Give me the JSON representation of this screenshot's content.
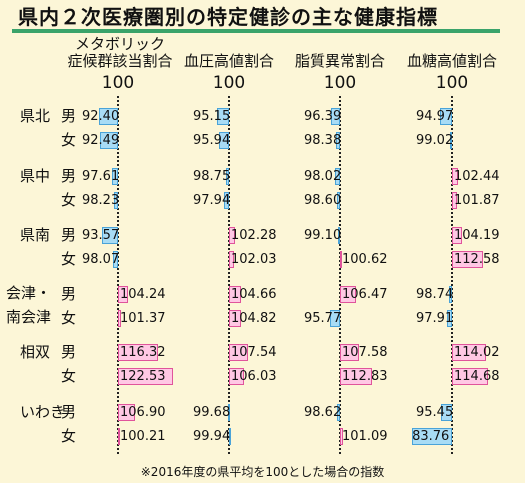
{
  "title": "県内２次医療圏別の特定健診の主な健康指標",
  "footnote": "※2016年度の県平均を100とした場合の指数",
  "colors": {
    "below": "#a8dcf5",
    "above": "#ffc8e4",
    "accent": "#3aa36a"
  },
  "chart_data": {
    "type": "bar",
    "baseline": 100,
    "baseline_label": "100",
    "metrics": [
      {
        "name": "メタボリック症候群該当割合",
        "label_lines": [
          "メタボリック",
          "症候群該当割合"
        ],
        "range": [
          90,
          125
        ]
      },
      {
        "name": "血圧高値割合",
        "label_lines": [
          "血圧高値割合"
        ],
        "range": [
          90,
          125
        ]
      },
      {
        "name": "脂質異常割合",
        "label_lines": [
          "脂質異常割合"
        ],
        "range": [
          90,
          125
        ]
      },
      {
        "name": "血糖高値割合",
        "label_lines": [
          "血糖高値割合"
        ],
        "range": [
          82,
          117
        ]
      }
    ],
    "regions": [
      {
        "label_lines": [
          "県北"
        ],
        "rows": [
          {
            "sex": "男",
            "values": [
              92.4,
              95.15,
              96.39,
              94.97
            ]
          },
          {
            "sex": "女",
            "values": [
              92.49,
              95.94,
              98.38,
              99.02
            ]
          }
        ]
      },
      {
        "label_lines": [
          "県中"
        ],
        "rows": [
          {
            "sex": "男",
            "values": [
              97.61,
              98.75,
              98.02,
              102.44
            ]
          },
          {
            "sex": "女",
            "values": [
              98.23,
              97.94,
              98.6,
              101.87
            ]
          }
        ]
      },
      {
        "label_lines": [
          "県南"
        ],
        "rows": [
          {
            "sex": "男",
            "values": [
              93.57,
              102.28,
              99.1,
              104.19
            ]
          },
          {
            "sex": "女",
            "values": [
              98.07,
              102.03,
              100.62,
              112.58
            ]
          }
        ]
      },
      {
        "label_lines": [
          "会津・",
          "南会津"
        ],
        "rows": [
          {
            "sex": "男",
            "values": [
              104.24,
              104.66,
              106.47,
              98.74
            ]
          },
          {
            "sex": "女",
            "values": [
              101.37,
              104.82,
              95.77,
              97.91
            ]
          }
        ]
      },
      {
        "label_lines": [
          "相双"
        ],
        "rows": [
          {
            "sex": "男",
            "values": [
              116.32,
              107.54,
              107.58,
              114.02
            ]
          },
          {
            "sex": "女",
            "values": [
              122.53,
              106.03,
              112.83,
              114.68
            ]
          }
        ]
      },
      {
        "label_lines": [
          "いわき"
        ],
        "rows": [
          {
            "sex": "男",
            "values": [
              106.9,
              99.68,
              98.62,
              95.45
            ]
          },
          {
            "sex": "女",
            "values": [
              100.21,
              99.94,
              101.09,
              83.76
            ]
          }
        ]
      }
    ]
  }
}
